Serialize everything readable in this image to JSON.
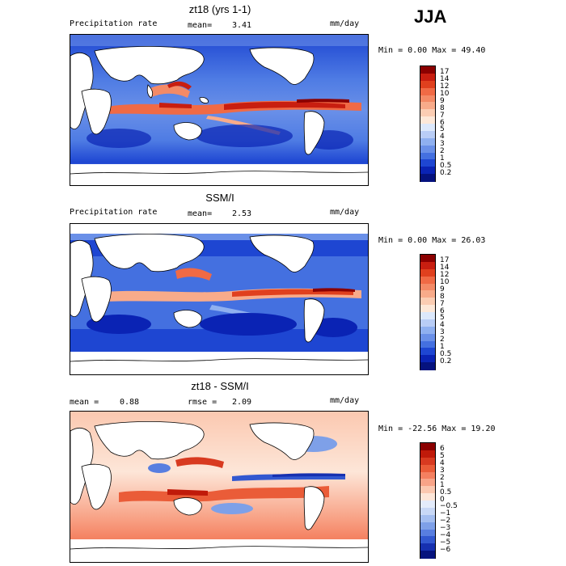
{
  "season": "JJA",
  "panels": [
    {
      "title": "zt18 (yrs 1-1)",
      "left_label": "Precipitation rate",
      "stat_label": "mean=",
      "stat_value": "3.41",
      "units": "mm/day",
      "min_max": "Min =    0.00 Max =   49.40",
      "colorbar": {
        "labels": [
          "17",
          "14",
          "12",
          "10",
          "9",
          "8",
          "7",
          "6",
          "5",
          "4",
          "3",
          "2",
          "1",
          "0.5",
          "0.2"
        ],
        "colors": [
          "#8b0000",
          "#c81e10",
          "#e0401e",
          "#f06a45",
          "#f48a66",
          "#f8ab8a",
          "#fbcdb3",
          "#fde8d8",
          "#dce8fb",
          "#b9cdf6",
          "#8fb0f0",
          "#6a90e8",
          "#4470e0",
          "#1e46d2",
          "#0a23b4",
          "#05127e"
        ]
      }
    },
    {
      "title": "SSM/I",
      "left_label": "Precipitation rate",
      "stat_label": "mean=",
      "stat_value": "2.53",
      "units": "mm/day",
      "min_max": "Min =    0.00 Max =   26.03",
      "colorbar": {
        "labels": [
          "17",
          "14",
          "12",
          "10",
          "9",
          "8",
          "7",
          "6",
          "5",
          "4",
          "3",
          "2",
          "1",
          "0.5",
          "0.2"
        ],
        "colors": [
          "#8b0000",
          "#c81e10",
          "#e0401e",
          "#f06a45",
          "#f48a66",
          "#f8ab8a",
          "#fbcdb3",
          "#fde8d8",
          "#dce8fb",
          "#b9cdf6",
          "#8fb0f0",
          "#6a90e8",
          "#4470e0",
          "#1e46d2",
          "#0a23b4",
          "#05127e"
        ]
      }
    },
    {
      "title": "zt18 - SSM/I",
      "left_label": "mean =",
      "left_value": "0.88",
      "stat_label": "rmse =",
      "stat_value": "2.09",
      "units": "mm/day",
      "min_max": "Min = -22.56 Max =   19.20",
      "colorbar": {
        "labels": [
          "6",
          "5",
          "4",
          "3",
          "2",
          "1",
          "0.5",
          "0",
          "−0.5",
          "−1",
          "−2",
          "−3",
          "−4",
          "−5",
          "−6"
        ],
        "colors": [
          "#8b0000",
          "#c01a0a",
          "#d83a20",
          "#ea5c38",
          "#f48060",
          "#f8a488",
          "#fbc8b0",
          "#fde6d8",
          "#e4ecfb",
          "#c8d8f6",
          "#a4bef0",
          "#7ea0e8",
          "#587ee0",
          "#3258d0",
          "#1630b0",
          "#06137e"
        ]
      }
    }
  ]
}
